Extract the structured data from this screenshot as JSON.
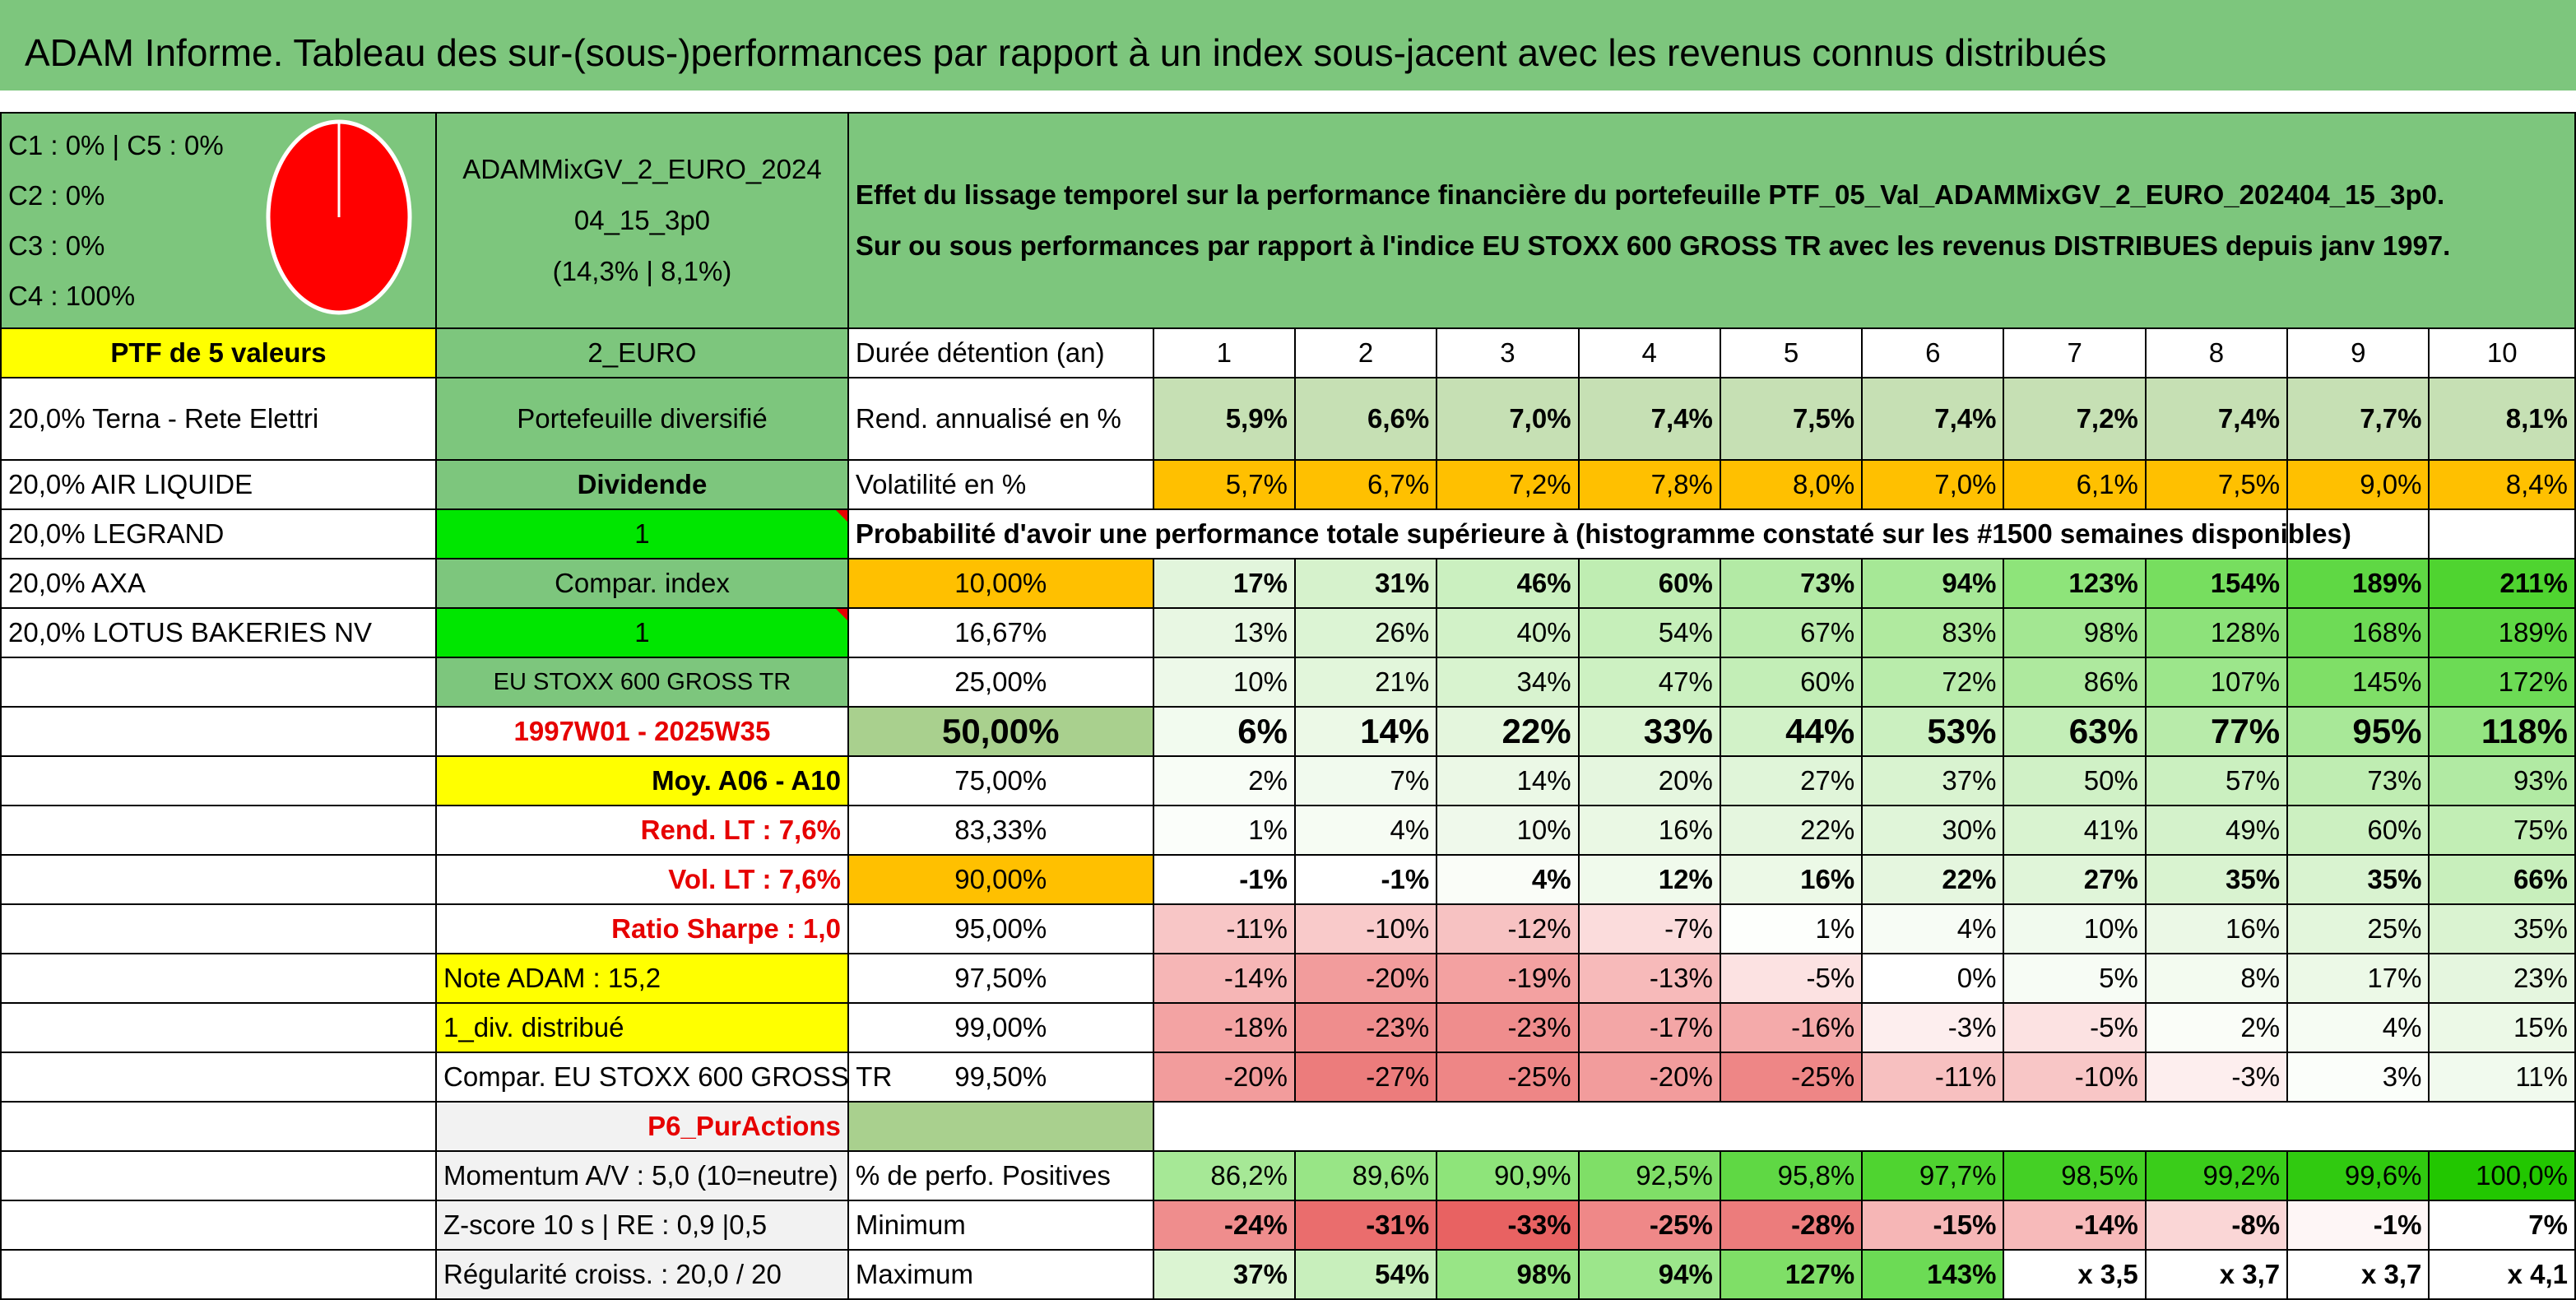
{
  "title": "ADAM Informe. Tableau des sur-(sous-)performances par rapport à un index sous-jacent avec les revenus connus distribués",
  "allocation": [
    "C1 : 0% | C5 : 0%",
    "C2 : 0%",
    "C3 : 0%",
    "C4 : 100%"
  ],
  "pie": {
    "C1": 0,
    "C2": 0,
    "C3": 0,
    "C4": 100,
    "C5": 0,
    "color": "#ff0000"
  },
  "portfolio": {
    "name_line1": "ADAMMixGV_2_EURO_2024",
    "name_line2": "04_15_3p0",
    "summary": "(14,3% | 8,1%)",
    "desc_line1": "Effet du lissage temporel sur la performance financière du portefeuille PTF_05_Val_ADAMMixGV_2_EURO_202404_15_3p0.",
    "desc_line2": "Sur ou sous performances par rapport à l'indice EU STOXX 600 GROSS TR avec les revenus DISTRIBUES depuis janv 1997."
  },
  "left": {
    "ptf_label": "PTF de 5 valeurs",
    "holdings": [
      "20,0% Terna - Rete Elettri",
      "20,0% AIR LIQUIDE",
      "20,0% LEGRAND",
      "20,0% AXA",
      "20,0% LOTUS BAKERIES NV"
    ]
  },
  "middle": {
    "code": "2_EURO",
    "type": "Portefeuille diversifié",
    "dividende_label": "Dividende",
    "dividende_value": "1",
    "compar_label": "Compar. index",
    "compar_value": "1",
    "index_name": "EU STOXX 600 GROSS TR",
    "period": "1997W01 - 2025W35",
    "moy": "Moy. A06 - A10",
    "rend_lt": "Rend. LT : 7,6%",
    "vol_lt": "Vol. LT : 7,6%",
    "sharpe": "Ratio Sharpe : 1,0",
    "note": "Note ADAM : 15,2",
    "div": "1_div. distribué",
    "compar_full": "Compar. EU STOXX 600 GROSS TR",
    "category": "P6_PurActions",
    "momentum": "Momentum A/V : 5,0 (10=neutre)",
    "zscore": "Z-score 10 s | RE : 0,9 |0,5",
    "regularite": "Régularité croiss. : 20,0 / 20"
  },
  "table": {
    "duration_label": "Durée détention (an)",
    "years": [
      "1",
      "2",
      "3",
      "4",
      "5",
      "6",
      "7",
      "8",
      "9",
      "10"
    ],
    "rend_label": "Rend. annualisé en %",
    "rend": [
      "5,9%",
      "6,6%",
      "7,0%",
      "7,4%",
      "7,5%",
      "7,4%",
      "7,2%",
      "7,4%",
      "7,7%",
      "8,1%"
    ],
    "vol_label": "Volatilité en %",
    "vol": [
      "5,7%",
      "6,7%",
      "7,2%",
      "7,8%",
      "8,0%",
      "7,0%",
      "6,1%",
      "7,5%",
      "9,0%",
      "8,4%"
    ],
    "prob_label": "Probabilité d'avoir une performance totale supérieure à (histogramme constaté sur les #1500 semaines disponibles)",
    "prob_rows": [
      {
        "p": "10,00%",
        "v": [
          "17%",
          "31%",
          "46%",
          "60%",
          "73%",
          "94%",
          "123%",
          "154%",
          "189%",
          "211%"
        ]
      },
      {
        "p": "16,67%",
        "v": [
          "13%",
          "26%",
          "40%",
          "54%",
          "67%",
          "83%",
          "98%",
          "128%",
          "168%",
          "189%"
        ]
      },
      {
        "p": "25,00%",
        "v": [
          "10%",
          "21%",
          "34%",
          "47%",
          "60%",
          "72%",
          "86%",
          "107%",
          "145%",
          "172%"
        ]
      },
      {
        "p": "50,00%",
        "v": [
          "6%",
          "14%",
          "22%",
          "33%",
          "44%",
          "53%",
          "63%",
          "77%",
          "95%",
          "118%"
        ]
      },
      {
        "p": "75,00%",
        "v": [
          "2%",
          "7%",
          "14%",
          "20%",
          "27%",
          "37%",
          "50%",
          "57%",
          "73%",
          "93%"
        ]
      },
      {
        "p": "83,33%",
        "v": [
          "1%",
          "4%",
          "10%",
          "16%",
          "22%",
          "30%",
          "41%",
          "49%",
          "60%",
          "75%"
        ]
      },
      {
        "p": "90,00%",
        "v": [
          "-1%",
          "-1%",
          "4%",
          "12%",
          "16%",
          "22%",
          "27%",
          "35%",
          "35%",
          "66%"
        ]
      },
      {
        "p": "95,00%",
        "v": [
          "-11%",
          "-10%",
          "-12%",
          "-7%",
          "1%",
          "4%",
          "10%",
          "16%",
          "25%",
          "35%"
        ]
      },
      {
        "p": "97,50%",
        "v": [
          "-14%",
          "-20%",
          "-19%",
          "-13%",
          "-5%",
          "0%",
          "5%",
          "8%",
          "17%",
          "23%"
        ]
      },
      {
        "p": "99,00%",
        "v": [
          "-18%",
          "-23%",
          "-23%",
          "-17%",
          "-16%",
          "-3%",
          "-5%",
          "2%",
          "4%",
          "15%"
        ]
      },
      {
        "p": "99,50%",
        "v": [
          "-20%",
          "-27%",
          "-25%",
          "-20%",
          "-25%",
          "-11%",
          "-10%",
          "-3%",
          "3%",
          "11%"
        ]
      }
    ],
    "pos_label": "% de perfo. Positives",
    "pos": [
      "86,2%",
      "89,6%",
      "90,9%",
      "92,5%",
      "95,8%",
      "97,7%",
      "98,5%",
      "99,2%",
      "99,6%",
      "100,0%"
    ],
    "min_label": "Minimum",
    "min": [
      "-24%",
      "-31%",
      "-33%",
      "-25%",
      "-28%",
      "-15%",
      "-14%",
      "-8%",
      "-1%",
      "7%"
    ],
    "max_label": "Maximum",
    "max": [
      "37%",
      "54%",
      "98%",
      "94%",
      "127%",
      "143%",
      "x 3,5",
      "x 3,7",
      "x 3,7",
      "x 4,1"
    ]
  }
}
